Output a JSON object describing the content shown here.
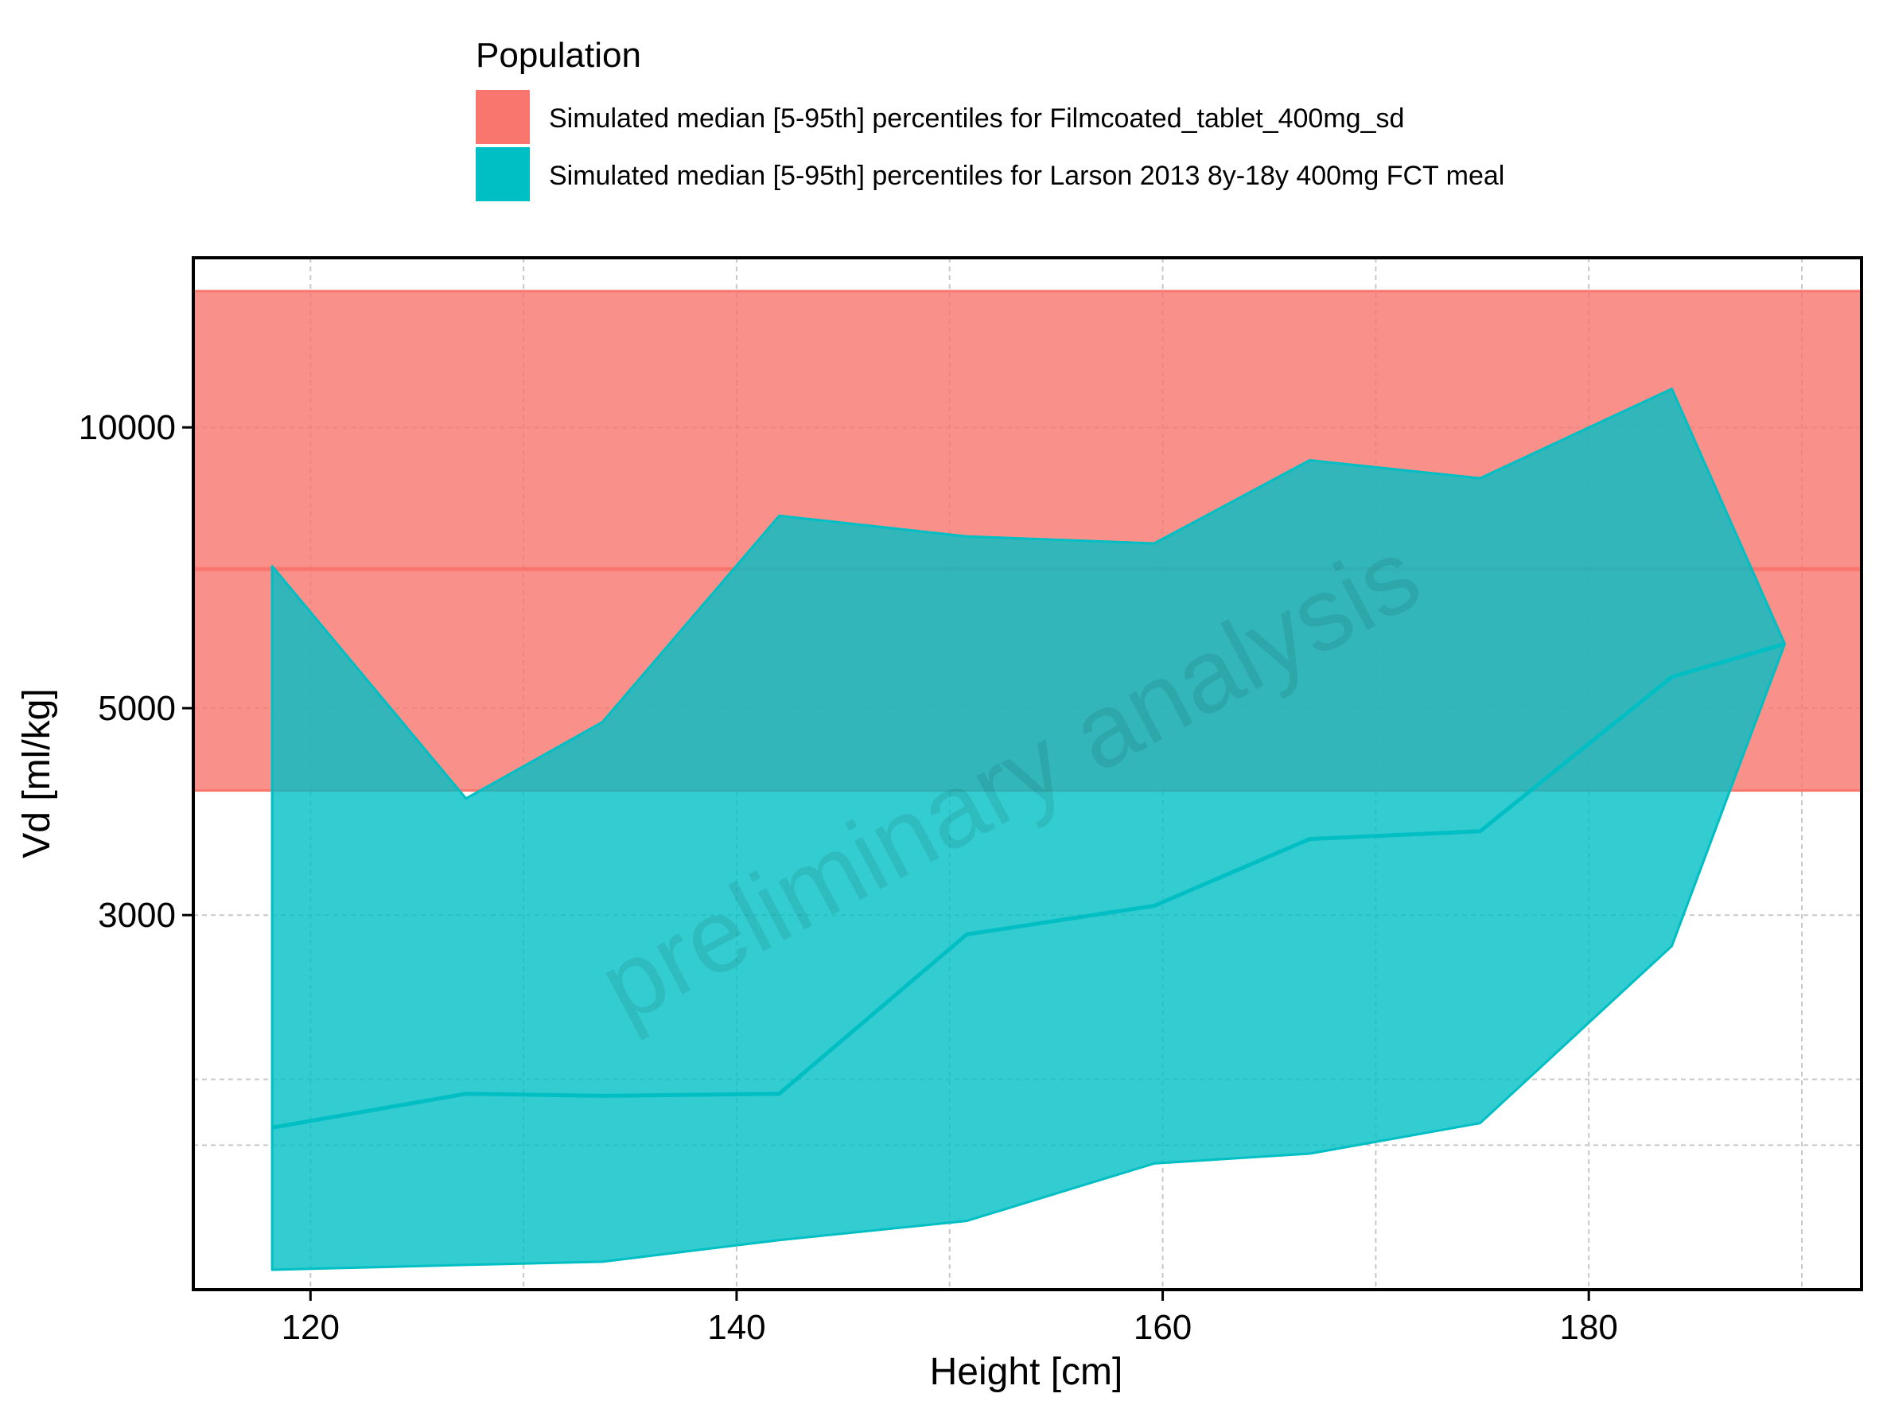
{
  "chart_data": {
    "type": "area",
    "title": "",
    "xlabel": "Height [cm]",
    "ylabel": "Vd [ml/kg]",
    "xscale": "linear",
    "yscale": "log",
    "xlim": [
      114.5,
      192.8
    ],
    "ylim": [
      1190,
      15200
    ],
    "x_ticks": [
      120,
      140,
      160,
      180
    ],
    "x_tick_labels": [
      "120",
      "140",
      "160",
      "180"
    ],
    "x_minor_ticks": [
      130,
      150,
      170,
      190
    ],
    "y_ticks": [
      3000,
      5000,
      10000
    ],
    "y_tick_labels": [
      "3000",
      "5000",
      "10000"
    ],
    "y_minor_ticks": [
      2000,
      1700
    ],
    "grid": true,
    "legend": {
      "title": "Population",
      "position": "top"
    },
    "watermark": "preliminary analysis",
    "series": [
      {
        "name": "Simulated median [5-95th] percentiles for Filmcoated_tablet_400mg_sd",
        "color": "#F8766D",
        "x": [
          114.5,
          192.8
        ],
        "median": [
          7050,
          7050
        ],
        "lower": [
          4080,
          4080
        ],
        "upper": [
          14000,
          14000
        ]
      },
      {
        "name": "Simulated median [5-95th] percentiles for Larson 2013 8y-18y 400mg FCT meal",
        "color": "#00BFC4",
        "x": [
          118.2,
          127.3,
          133.7,
          142.0,
          150.8,
          159.6,
          166.9,
          174.9,
          183.9,
          189.2
        ],
        "median": [
          1775,
          1930,
          1920,
          1930,
          2860,
          3070,
          3620,
          3690,
          5400,
          5860
        ],
        "lower": [
          1250,
          1265,
          1275,
          1345,
          1410,
          1625,
          1665,
          1795,
          2780,
          5860
        ],
        "upper": [
          7100,
          4000,
          4830,
          8040,
          7640,
          7510,
          9220,
          8820,
          11000,
          5860
        ]
      }
    ]
  }
}
